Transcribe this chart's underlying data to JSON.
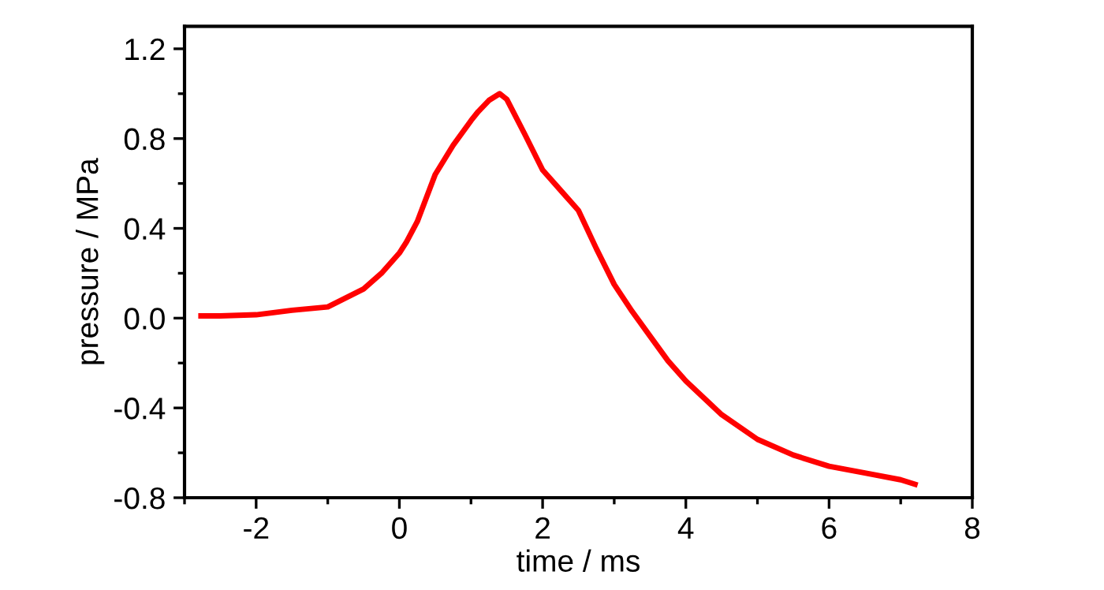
{
  "chart_data": {
    "type": "line",
    "xlabel": "time / ms",
    "ylabel": "pressure / MPa",
    "xlim": [
      -3,
      8
    ],
    "xticks": [
      -2,
      0,
      2,
      4,
      6,
      8
    ],
    "ylim": [
      -0.8,
      1.3
    ],
    "yticks": [
      -0.8,
      -0.4,
      {
        "value": 0,
        "label": "0.0"
      },
      0.4,
      0.8,
      1.2
    ],
    "grid": false,
    "marker": "none",
    "line_style": "solid",
    "series": [
      {
        "color": "#ff0000",
        "x": [
          -2.77,
          -2.5,
          -2,
          -1.5,
          -1,
          -0.5,
          -0.25,
          0,
          0.1,
          0.25,
          0.5,
          0.75,
          1,
          1.1,
          1.25,
          1.4,
          1.5,
          1.75,
          2,
          2.25,
          2.5,
          2.75,
          3,
          3.25,
          3.5,
          3.75,
          4,
          4.5,
          5,
          5.5,
          6,
          6.5,
          7,
          7.2
        ],
        "values": [
          0.01,
          0.01,
          0.015,
          0.035,
          0.05,
          0.13,
          0.2,
          0.29,
          0.34,
          0.43,
          0.64,
          0.77,
          0.88,
          0.92,
          0.97,
          1.0,
          0.975,
          0.82,
          0.66,
          0.57,
          0.48,
          0.31,
          0.15,
          0.03,
          -0.08,
          -0.19,
          -0.28,
          -0.43,
          -0.54,
          -0.61,
          -0.66,
          -0.69,
          -0.72,
          -0.74
        ]
      }
    ]
  }
}
